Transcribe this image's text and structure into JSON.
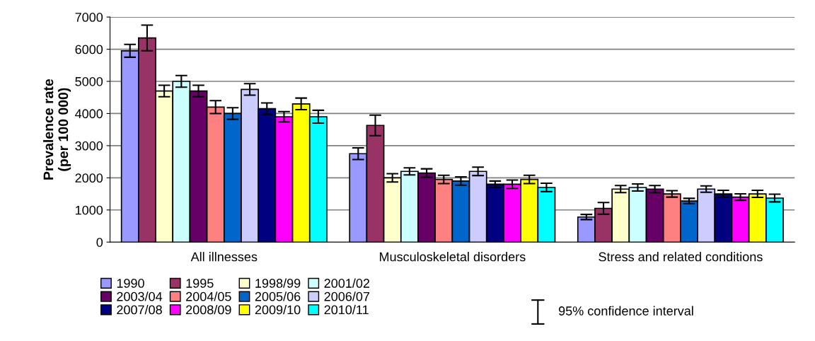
{
  "chart_data": {
    "type": "bar",
    "ylabel": "Prevalence rate\n(per 100 000)",
    "categories": [
      "All illnesses",
      "Musculoskeletal disorders",
      "Stress and related conditions"
    ],
    "ylim": [
      0,
      7000
    ],
    "yticks": [
      0,
      1000,
      2000,
      3000,
      4000,
      5000,
      6000,
      7000
    ],
    "grid": "y",
    "legend": "bottom left",
    "annotations": [
      "95% confidence interval"
    ],
    "series": [
      {
        "name": "1990",
        "color": "#9999ff",
        "values": [
          5950,
          2750,
          780
        ],
        "errors": [
          200,
          180,
          80
        ]
      },
      {
        "name": "1995",
        "color": "#993366",
        "values": [
          6350,
          3630,
          1050
        ],
        "errors": [
          400,
          320,
          180
        ]
      },
      {
        "name": "1998/99",
        "color": "#ffffcc",
        "values": [
          4700,
          2000,
          1650
        ],
        "errors": [
          180,
          130,
          110
        ]
      },
      {
        "name": "2001/02",
        "color": "#ccffff",
        "values": [
          5000,
          2200,
          1700
        ],
        "errors": [
          180,
          110,
          110
        ]
      },
      {
        "name": "2003/04",
        "color": "#660066",
        "values": [
          4700,
          2150,
          1650
        ],
        "errors": [
          180,
          130,
          110
        ]
      },
      {
        "name": "2004/05",
        "color": "#ff8080",
        "values": [
          4200,
          1950,
          1500
        ],
        "errors": [
          200,
          130,
          100
        ]
      },
      {
        "name": "2005/06",
        "color": "#0066cc",
        "values": [
          4000,
          1900,
          1280
        ],
        "errors": [
          180,
          130,
          80
        ]
      },
      {
        "name": "2006/07",
        "color": "#ccccff",
        "values": [
          4750,
          2200,
          1650
        ],
        "errors": [
          180,
          130,
          100
        ]
      },
      {
        "name": "2007/08",
        "color": "#000080",
        "values": [
          4150,
          1800,
          1500
        ],
        "errors": [
          180,
          100,
          110
        ]
      },
      {
        "name": "2008/09",
        "color": "#ff00ff",
        "values": [
          3900,
          1800,
          1400
        ],
        "errors": [
          160,
          130,
          100
        ]
      },
      {
        "name": "2009/10",
        "color": "#ffff00",
        "values": [
          4300,
          1950,
          1500
        ],
        "errors": [
          180,
          130,
          110
        ]
      },
      {
        "name": "2010/11",
        "color": "#00ffff",
        "values": [
          3900,
          1700,
          1370
        ],
        "errors": [
          200,
          130,
          120
        ]
      }
    ]
  }
}
